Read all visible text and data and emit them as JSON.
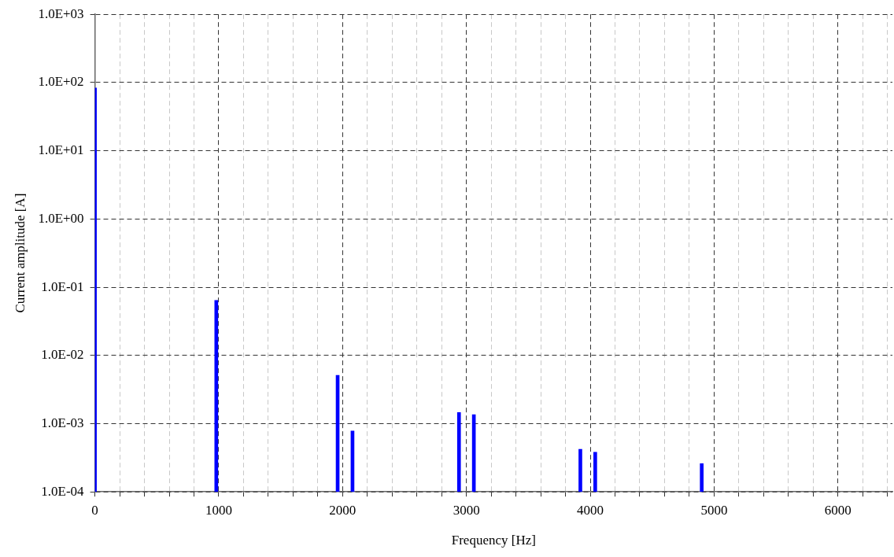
{
  "chart_data": {
    "type": "bar",
    "xlabel": "Frequency [Hz]",
    "ylabel": "Current amplitude [A]",
    "log": "y",
    "grid": true,
    "legend": false,
    "x": [
      0,
      980,
      1960,
      2080,
      2940,
      3060,
      3920,
      4040,
      4900
    ],
    "series": [
      {
        "color": "#0000ff",
        "values": [
          83,
          0.064,
          0.0051,
          0.00078,
          0.00146,
          0.00135,
          0.00042,
          0.00038,
          0.00026
        ]
      }
    ],
    "xlim": [
      0,
      6440
    ],
    "xticks": [
      0,
      {
        "value": 200,
        "label": null
      },
      {
        "value": 400,
        "label": null
      },
      {
        "value": 600,
        "label": null
      },
      {
        "value": 800,
        "label": null
      },
      1000,
      {
        "value": 1200,
        "label": null
      },
      {
        "value": 1400,
        "label": null
      },
      {
        "value": 1600,
        "label": null
      },
      {
        "value": 1800,
        "label": null
      },
      2000,
      {
        "value": 2200,
        "label": null
      },
      {
        "value": 2400,
        "label": null
      },
      {
        "value": 2600,
        "label": null
      },
      {
        "value": 2800,
        "label": null
      },
      3000,
      {
        "value": 3200,
        "label": null
      },
      {
        "value": 3400,
        "label": null
      },
      {
        "value": 3600,
        "label": null
      },
      {
        "value": 3800,
        "label": null
      },
      4000,
      {
        "value": 4200,
        "label": null
      },
      {
        "value": 4400,
        "label": null
      },
      {
        "value": 4600,
        "label": null
      },
      {
        "value": 4800,
        "label": null
      },
      5000,
      {
        "value": 5200,
        "label": null
      },
      {
        "value": 5400,
        "label": null
      },
      {
        "value": 5600,
        "label": null
      },
      {
        "value": 5800,
        "label": null
      },
      6000,
      {
        "value": 6200,
        "label": null
      },
      {
        "value": 6400,
        "label": null
      }
    ],
    "ylim": [
      0.0001,
      1000
    ],
    "yticks": [
      {
        "value": 0.0001,
        "label": "1.0E-04"
      },
      {
        "value": 0.001,
        "label": "1.0E-03"
      },
      {
        "value": 0.01,
        "label": "1.0E-02"
      },
      {
        "value": 0.1,
        "label": "1.0E-01"
      },
      {
        "value": 1,
        "label": "1.0E+00"
      },
      {
        "value": 10,
        "label": "1.0E+01"
      },
      {
        "value": 100,
        "label": "1.0E+02"
      },
      {
        "value": 1000,
        "label": "1.0E+03"
      }
    ]
  }
}
